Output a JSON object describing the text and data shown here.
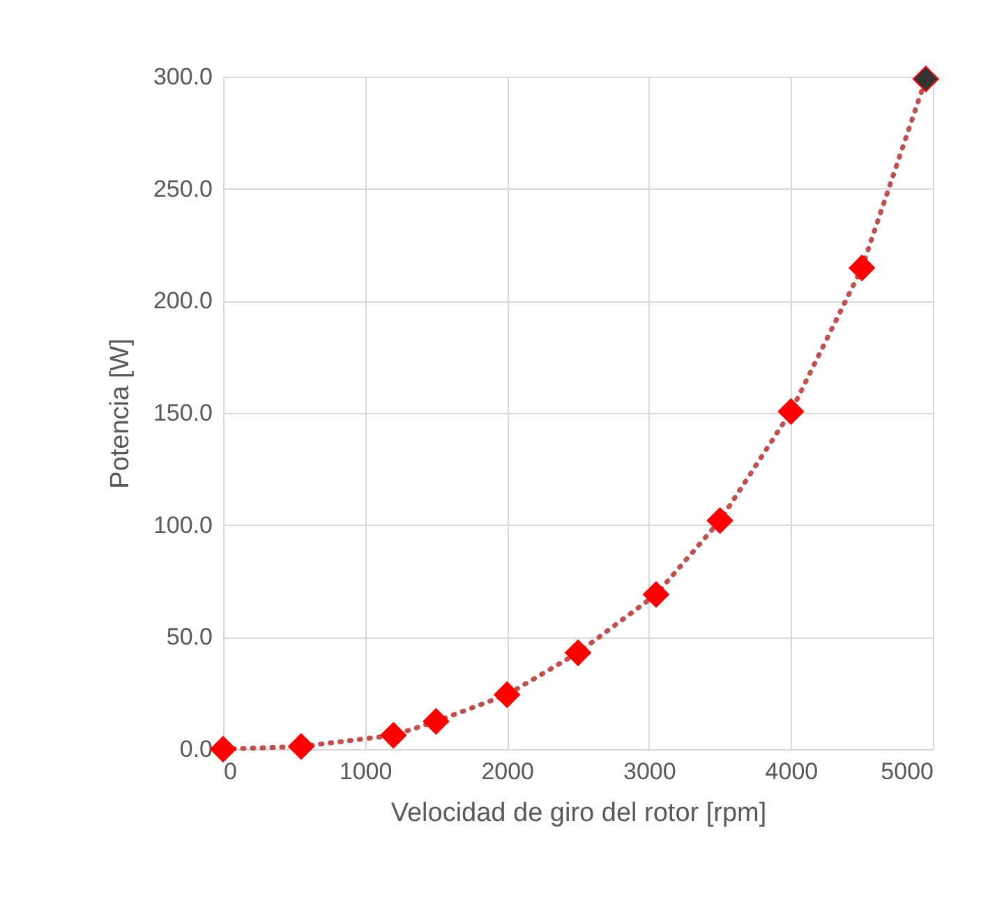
{
  "chart_data": {
    "type": "scatter",
    "xlabel": "Velocidad de giro del rotor [rpm]",
    "ylabel": "Potencia [W]",
    "xlim": [
      0,
      5000
    ],
    "xticks": [
      0,
      1000,
      2000,
      3000,
      4000,
      5000
    ],
    "ylim": [
      0,
      300
    ],
    "yticks": [
      {
        "value": 0,
        "label": "0.0"
      },
      {
        "value": 50,
        "label": "50.0"
      },
      {
        "value": 100,
        "label": "100.0"
      },
      {
        "value": 150,
        "label": "150.0"
      },
      {
        "value": 200,
        "label": "200.0"
      },
      {
        "value": 250,
        "label": "250.0"
      },
      {
        "value": 300,
        "label": "300.0"
      }
    ],
    "grid": true,
    "series": [
      {
        "type": "line",
        "line_style": "dotted",
        "marker": "none",
        "color": "#c0504d",
        "x": [
          0,
          550,
          1200,
          1500,
          2000,
          2500,
          3050,
          3500,
          4000,
          4500,
          4950
        ],
        "values": [
          0,
          1.2,
          6.2,
          12.4,
          24.3,
          43,
          69,
          102,
          150.6,
          214.7,
          299
        ]
      },
      {
        "type": "scatter",
        "marker": "diamond",
        "color": "#ff0000",
        "colors": [
          "#ff0000",
          "#ff0000",
          "#ff0000",
          "#ff0000",
          "#ff0000",
          "#ff0000",
          "#ff0000",
          "#ff0000",
          "#ff0000",
          "#ff0000",
          "#333333"
        ],
        "x": [
          0,
          550,
          1200,
          1500,
          2000,
          2500,
          3050,
          3500,
          4000,
          4500,
          4950
        ],
        "values": [
          0,
          1.2,
          6.2,
          12.4,
          24.3,
          43,
          69,
          102,
          150.6,
          214.7,
          299
        ]
      }
    ]
  }
}
